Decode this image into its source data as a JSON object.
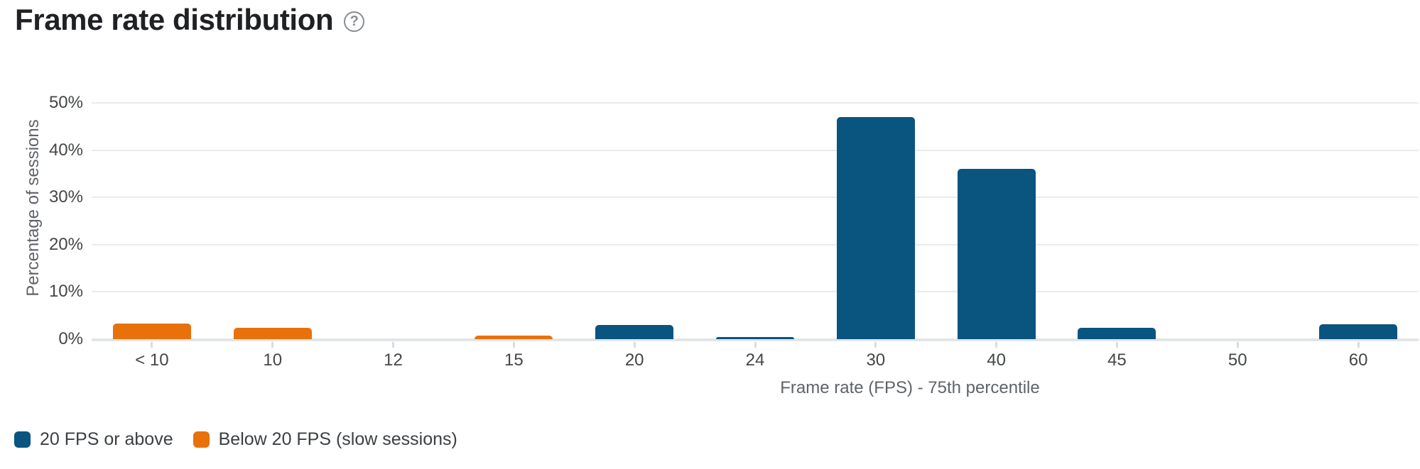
{
  "header": {
    "title": "Frame rate distribution",
    "help_glyph": "?"
  },
  "chart_data": {
    "type": "bar",
    "title": "Frame rate distribution",
    "categories": [
      "< 10",
      "10",
      "12",
      "15",
      "20",
      "24",
      "30",
      "40",
      "45",
      "50",
      "60"
    ],
    "values": [
      3.3,
      2.4,
      0,
      0.7,
      3.0,
      0.5,
      47,
      36,
      2.4,
      0,
      3.1
    ],
    "series_index": [
      1,
      1,
      1,
      1,
      0,
      0,
      0,
      0,
      0,
      0,
      0
    ],
    "xlabel": "Frame rate (FPS) - 75th percentile",
    "ylabel": "Percentage of sessions",
    "ylim": [
      0,
      50
    ],
    "ytick_values": [
      0,
      10,
      20,
      30,
      40,
      50
    ],
    "ytick_labels": [
      "0%",
      "10%",
      "20%",
      "30%",
      "40%",
      "50%"
    ],
    "grid": true,
    "legend_position": "bottom-left",
    "legend": [
      {
        "label": "20 FPS or above",
        "color": "#0a5480"
      },
      {
        "label": "Below 20 FPS (slow sessions)",
        "color": "#e8710a"
      }
    ]
  },
  "colors": {
    "above_series": "#0a5480",
    "below_series": "#e8710a",
    "gridline": "#e9ebee",
    "axis_line": "#e2e5e8",
    "tick_mark": "#dadce0",
    "title_text": "#202124",
    "axis_text": "#444746",
    "axis_title_text": "#5f6368"
  }
}
